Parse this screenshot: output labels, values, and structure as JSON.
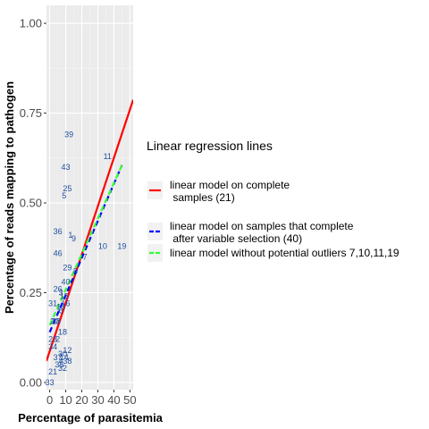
{
  "chart_data": {
    "type": "scatter",
    "xlabel": "Percentage of parasitemia",
    "ylabel": "Percentage of reads mapping to pathogen",
    "xlim": [
      -2,
      52
    ],
    "ylim": [
      -0.02,
      1.05
    ],
    "x_ticks": [
      0,
      10,
      20,
      30,
      40,
      50
    ],
    "y_ticks": [
      0.0,
      0.25,
      0.5,
      0.75,
      1.0
    ],
    "x_tick_labels": [
      "0",
      "10",
      "20",
      "30",
      "40",
      "50"
    ],
    "y_tick_labels": [
      "0.00",
      "0.25",
      "0.50",
      "0.75",
      "1.00"
    ],
    "grid": true,
    "background": "#ebebeb",
    "label_color": "#1f4fa0",
    "points": [
      {
        "label": "39",
        "x": 12,
        "y": 0.69
      },
      {
        "label": "11",
        "x": 36,
        "y": 0.63
      },
      {
        "label": "43",
        "x": 10,
        "y": 0.6
      },
      {
        "label": "25",
        "x": 11,
        "y": 0.54
      },
      {
        "label": "5",
        "x": 9,
        "y": 0.52
      },
      {
        "label": "36",
        "x": 5,
        "y": 0.42
      },
      {
        "label": "1",
        "x": 13,
        "y": 0.41
      },
      {
        "label": "9",
        "x": 15,
        "y": 0.4
      },
      {
        "label": "10",
        "x": 33,
        "y": 0.38
      },
      {
        "label": "19",
        "x": 45,
        "y": 0.38
      },
      {
        "label": "46",
        "x": 5,
        "y": 0.36
      },
      {
        "label": "7",
        "x": 22,
        "y": 0.35
      },
      {
        "label": "29",
        "x": 11,
        "y": 0.32
      },
      {
        "label": "8",
        "x": 16,
        "y": 0.31
      },
      {
        "label": "40",
        "x": 10,
        "y": 0.28
      },
      {
        "label": "26",
        "x": 5,
        "y": 0.26
      },
      {
        "label": "3",
        "x": 7,
        "y": 0.25
      },
      {
        "label": "15",
        "x": 9,
        "y": 0.24
      },
      {
        "label": "31",
        "x": 2,
        "y": 0.22
      },
      {
        "label": "13",
        "x": 7,
        "y": 0.21
      },
      {
        "label": "16",
        "x": 10,
        "y": 0.22
      },
      {
        "label": "6",
        "x": 7,
        "y": 0.2
      },
      {
        "label": "28",
        "x": 4,
        "y": 0.17
      },
      {
        "label": "20",
        "x": 3,
        "y": 0.17
      },
      {
        "label": "18",
        "x": 8,
        "y": 0.14
      },
      {
        "label": "23",
        "x": 2,
        "y": 0.12
      },
      {
        "label": "2",
        "x": 5,
        "y": 0.12
      },
      {
        "label": "34",
        "x": 2,
        "y": 0.1
      },
      {
        "label": "12",
        "x": 11,
        "y": 0.09
      },
      {
        "label": "30",
        "x": 8,
        "y": 0.08
      },
      {
        "label": "37",
        "x": 5,
        "y": 0.07
      },
      {
        "label": "14",
        "x": 9,
        "y": 0.07
      },
      {
        "label": "4",
        "x": 7,
        "y": 0.06
      },
      {
        "label": "38",
        "x": 11,
        "y": 0.06
      },
      {
        "label": "35",
        "x": 6,
        "y": 0.05
      },
      {
        "label": "32",
        "x": 8,
        "y": 0.04
      },
      {
        "label": "21",
        "x": 2,
        "y": 0.03
      },
      {
        "label": "33",
        "x": 0,
        "y": 0.0
      }
    ],
    "lines": [
      {
        "name": "linear model on complete\n samples (21)",
        "color": "#ff0000",
        "dash": false,
        "x": [
          -2,
          52
        ],
        "y": [
          0.06,
          0.787
        ]
      },
      {
        "name": "linear model on samples that complete\n after variable selection (40)",
        "color": "#0000ff",
        "dash": true,
        "x": [
          0,
          45
        ],
        "y": [
          0.14,
          0.605
        ]
      },
      {
        "name": "linear model without potential outliers 7,10,11,19",
        "color": "#33ff33",
        "dash": true,
        "x": [
          0,
          45
        ],
        "y": [
          0.16,
          0.605
        ]
      }
    ],
    "legend": {
      "title": "Linear regression lines",
      "placement": "right"
    }
  }
}
